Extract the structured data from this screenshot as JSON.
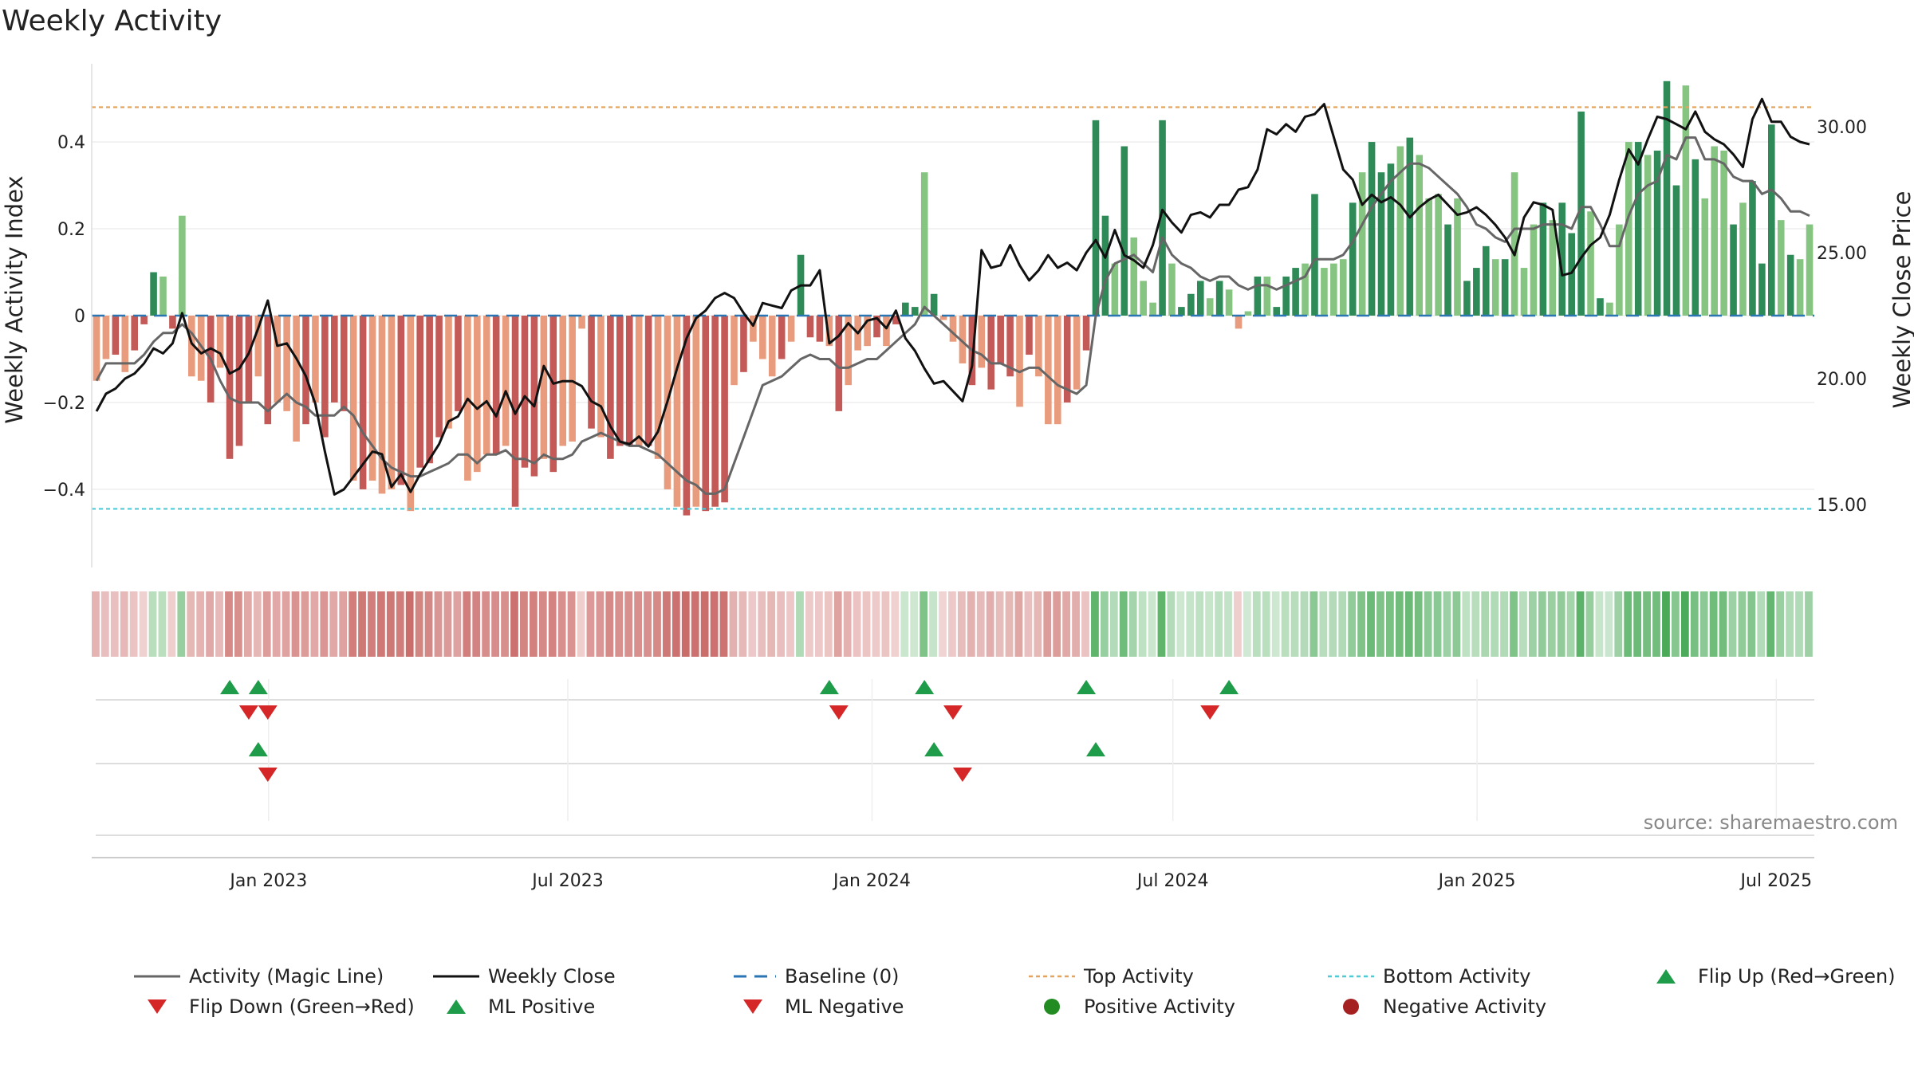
{
  "chart_data": {
    "type": "bar",
    "title": "Weekly Activity",
    "ylabel_left": "Weekly Activity Index",
    "ylabel_right": "Weekly Close Price",
    "source": "source: sharemaestro.com",
    "ylim_left": [
      -0.58,
      0.58
    ],
    "ylim_right": [
      12.5,
      32.5
    ],
    "yticks_left": [
      {
        "value": 0.4,
        "label": "0.4"
      },
      {
        "value": 0.2,
        "label": "0.2"
      },
      {
        "value": 0,
        "label": "0"
      },
      {
        "value": -0.2,
        "label": "−0.2"
      },
      {
        "value": -0.4,
        "label": "−0.4"
      }
    ],
    "yticks_right": [
      {
        "value": 30,
        "label": "30.00"
      },
      {
        "value": 25,
        "label": "25.00"
      },
      {
        "value": 20,
        "label": "20.00"
      },
      {
        "value": 15,
        "label": "15.00"
      }
    ],
    "xlim_days": [
      0,
      1042
    ],
    "x_start": "2022-09-16",
    "xticks": [
      {
        "day": 107,
        "label": "Jan 2023"
      },
      {
        "day": 288,
        "label": "Jul 2023"
      },
      {
        "day": 472,
        "label": "Jan 2024"
      },
      {
        "day": 654,
        "label": "Jul 2024"
      },
      {
        "day": 838,
        "label": "Jan 2025"
      },
      {
        "day": 1019,
        "label": "Jul 2025"
      }
    ],
    "top_activity": 0.48,
    "bottom_activity": -0.445,
    "baseline": 0,
    "activity": [
      -0.15,
      -0.1,
      -0.09,
      -0.13,
      -0.08,
      -0.02,
      0.1,
      0.09,
      -0.03,
      0.23,
      -0.14,
      -0.15,
      -0.2,
      -0.12,
      -0.33,
      -0.3,
      -0.2,
      -0.14,
      -0.25,
      -0.2,
      -0.22,
      -0.29,
      -0.25,
      -0.2,
      -0.28,
      -0.2,
      -0.22,
      -0.38,
      -0.4,
      -0.38,
      -0.41,
      -0.4,
      -0.39,
      -0.45,
      -0.35,
      -0.34,
      -0.28,
      -0.26,
      -0.22,
      -0.38,
      -0.36,
      -0.32,
      -0.32,
      -0.3,
      -0.44,
      -0.35,
      -0.37,
      -0.33,
      -0.36,
      -0.3,
      -0.29,
      -0.03,
      -0.26,
      -0.28,
      -0.33,
      -0.3,
      -0.3,
      -0.3,
      -0.3,
      -0.33,
      -0.4,
      -0.44,
      -0.46,
      -0.44,
      -0.45,
      -0.44,
      -0.43,
      -0.16,
      -0.13,
      -0.06,
      -0.1,
      -0.14,
      -0.1,
      -0.06,
      0.14,
      -0.05,
      -0.06,
      -0.07,
      -0.22,
      -0.16,
      -0.08,
      -0.07,
      -0.05,
      -0.07,
      -0.02,
      0.03,
      0.02,
      0.33,
      0.05,
      -0.01,
      -0.06,
      -0.11,
      -0.16,
      -0.12,
      -0.17,
      -0.11,
      -0.14,
      -0.21,
      -0.09,
      -0.14,
      -0.25,
      -0.25,
      -0.2,
      -0.17,
      -0.08,
      0.45,
      0.23,
      0.12,
      0.39,
      0.18,
      0.08,
      0.03,
      0.45,
      0.12,
      0.02,
      0.05,
      0.08,
      0.04,
      0.08,
      0.06,
      -0.03,
      0.01,
      0.09,
      0.09,
      0.02,
      0.09,
      0.11,
      0.12,
      0.28,
      0.11,
      0.12,
      0.13,
      0.26,
      0.33,
      0.4,
      0.33,
      0.35,
      0.39,
      0.41,
      0.37,
      0.27,
      0.28,
      0.21,
      0.27,
      0.08,
      0.11,
      0.16,
      0.13,
      0.13,
      0.33,
      0.11,
      0.21,
      0.26,
      0.22,
      0.26,
      0.19,
      0.47,
      0.24,
      0.04,
      0.03,
      0.21,
      0.4,
      0.4,
      0.37,
      0.38,
      0.54,
      0.3,
      0.53,
      0.36,
      0.27,
      0.39,
      0.38,
      0.21,
      0.26,
      0.31,
      0.12,
      0.44,
      0.22,
      0.14,
      0.13,
      0.21
    ],
    "close": [
      18.7,
      19.4,
      19.6,
      20,
      20.2,
      20.6,
      21.2,
      21,
      21.4,
      22.6,
      21.4,
      21,
      21.2,
      21,
      20.2,
      20.4,
      21,
      22,
      23.1,
      21.3,
      21.4,
      20.8,
      20.1,
      19,
      17.1,
      15.4,
      15.6,
      16.1,
      16.6,
      17.1,
      17,
      15.7,
      16.2,
      15.5,
      16.2,
      16.8,
      17.4,
      18.3,
      18.5,
      19.2,
      18.8,
      19.1,
      18.5,
      19.5,
      18.6,
      19.3,
      18.9,
      20.5,
      19.8,
      19.9,
      19.9,
      19.7,
      19.1,
      18.9,
      18.1,
      17.5,
      17.4,
      17.7,
      17.3,
      17.9,
      19.1,
      20.4,
      21.6,
      22.4,
      22.7,
      23.2,
      23.4,
      23.2,
      22.6,
      22.1,
      23,
      22.9,
      22.8,
      23.5,
      23.7,
      23.7,
      24.3,
      21.4,
      21.7,
      22.2,
      21.8,
      22.3,
      22.4,
      22,
      22.7,
      21.6,
      21.1,
      20.4,
      19.8,
      19.9,
      19.5,
      19.1,
      20.5,
      25.1,
      24.4,
      24.5,
      25.3,
      24.5,
      23.9,
      24.3,
      24.9,
      24.4,
      24.6,
      24.3,
      25,
      25.5,
      24.8,
      25.9,
      24.9,
      24.7,
      24.4,
      25.3,
      26.7,
      26.2,
      25.8,
      26.5,
      26.6,
      26.4,
      26.9,
      26.9,
      27.5,
      27.6,
      28.3,
      29.9,
      29.7,
      30.1,
      29.8,
      30.4,
      30.5,
      30.9,
      29.6,
      28.3,
      27.9,
      26.9,
      27.3,
      27,
      27.2,
      26.9,
      26.4,
      26.8,
      27.1,
      27.3,
      26.9,
      26.5,
      26.6,
      26.8,
      26.5,
      26.1,
      25.6,
      24.9,
      26.4,
      27,
      26.9,
      26.7,
      24.1,
      24.2,
      24.8,
      25.3,
      25.6,
      26.5,
      27.9,
      29.1,
      28.5,
      29.5,
      30.4,
      30.3,
      30.1,
      29.9,
      30.6,
      29.8,
      29.5,
      29.3,
      28.9,
      28.4,
      30.3,
      31.1,
      30.2,
      30.2,
      29.6,
      29.4,
      29.3
    ],
    "magic_line": [
      -0.15,
      -0.11,
      -0.11,
      -0.11,
      -0.11,
      -0.09,
      -0.06,
      -0.04,
      -0.04,
      -0.02,
      -0.04,
      -0.07,
      -0.1,
      -0.15,
      -0.19,
      -0.2,
      -0.2,
      -0.2,
      -0.22,
      -0.2,
      -0.18,
      -0.2,
      -0.21,
      -0.23,
      -0.23,
      -0.23,
      -0.21,
      -0.23,
      -0.27,
      -0.3,
      -0.33,
      -0.35,
      -0.36,
      -0.37,
      -0.37,
      -0.36,
      -0.35,
      -0.34,
      -0.32,
      -0.32,
      -0.34,
      -0.32,
      -0.32,
      -0.31,
      -0.33,
      -0.33,
      -0.34,
      -0.32,
      -0.33,
      -0.33,
      -0.32,
      -0.29,
      -0.28,
      -0.27,
      -0.28,
      -0.29,
      -0.3,
      -0.3,
      -0.31,
      -0.32,
      -0.34,
      -0.36,
      -0.38,
      -0.39,
      -0.41,
      -0.41,
      -0.4,
      -0.34,
      -0.28,
      -0.22,
      -0.16,
      -0.15,
      -0.14,
      -0.12,
      -0.1,
      -0.09,
      -0.1,
      -0.1,
      -0.12,
      -0.12,
      -0.11,
      -0.1,
      -0.1,
      -0.08,
      -0.06,
      -0.04,
      -0.02,
      0.02,
      0,
      -0.02,
      -0.04,
      -0.06,
      -0.08,
      -0.09,
      -0.11,
      -0.11,
      -0.12,
      -0.13,
      -0.12,
      -0.12,
      -0.14,
      -0.16,
      -0.17,
      -0.18,
      -0.16,
      0,
      0.08,
      0.12,
      0.13,
      0.14,
      0.12,
      0.1,
      0.18,
      0.14,
      0.12,
      0.11,
      0.09,
      0.08,
      0.09,
      0.09,
      0.07,
      0.06,
      0.07,
      0.07,
      0.06,
      0.07,
      0.08,
      0.09,
      0.13,
      0.13,
      0.13,
      0.14,
      0.17,
      0.21,
      0.25,
      0.28,
      0.31,
      0.33,
      0.35,
      0.35,
      0.34,
      0.32,
      0.3,
      0.28,
      0.25,
      0.21,
      0.2,
      0.18,
      0.17,
      0.2,
      0.2,
      0.2,
      0.21,
      0.21,
      0.21,
      0.2,
      0.25,
      0.25,
      0.21,
      0.16,
      0.16,
      0.23,
      0.28,
      0.3,
      0.31,
      0.37,
      0.36,
      0.41,
      0.41,
      0.36,
      0.36,
      0.35,
      0.32,
      0.31,
      0.31,
      0.28,
      0.29,
      0.27,
      0.24,
      0.24,
      0.23
    ],
    "flip_up": [
      14,
      17,
      77,
      87,
      104,
      119
    ],
    "flip_down": [
      16,
      18,
      78,
      90,
      117
    ],
    "ml_positive": [
      17,
      88,
      105
    ],
    "ml_negative": [
      18,
      91
    ],
    "colors": {
      "red_dark": "#c45a57",
      "red_light": "#e99c7d",
      "green_dark": "#2e8b57",
      "green_light": "#86c481",
      "magic_line": "#666666",
      "close": "#111111",
      "baseline": "#2a76b4",
      "top": "#e3a460",
      "bottom": "#4ecbd6",
      "flip_up": "#1f9c4a",
      "flip_down": "#d62728",
      "positive_dot": "#228b22",
      "negative_dot": "#a52121"
    },
    "legend": [
      {
        "label": "Activity (Magic Line)",
        "icon": "solid-line",
        "color": "#666666"
      },
      {
        "label": "Weekly Close",
        "icon": "solid-line",
        "color": "#111111"
      },
      {
        "label": "Baseline (0)",
        "icon": "dashed-line",
        "color": "#2a76b4"
      },
      {
        "label": "Top Activity",
        "icon": "dotted-line",
        "color": "#e3a460"
      },
      {
        "label": "Bottom Activity",
        "icon": "dotted-line",
        "color": "#4ecbd6"
      },
      {
        "label": "Flip Up (Red→Green)",
        "icon": "triangle-up",
        "color": "#1f9c4a"
      },
      {
        "label": "Flip Down (Green→Red)",
        "icon": "triangle-down",
        "color": "#d62728"
      },
      {
        "label": "ML Positive",
        "icon": "triangle-up",
        "color": "#1f9c4a"
      },
      {
        "label": "ML Negative",
        "icon": "triangle-down",
        "color": "#d62728"
      },
      {
        "label": "Positive Activity",
        "icon": "circle",
        "color": "#228b22"
      },
      {
        "label": "Negative Activity",
        "icon": "circle",
        "color": "#a52121"
      }
    ]
  }
}
